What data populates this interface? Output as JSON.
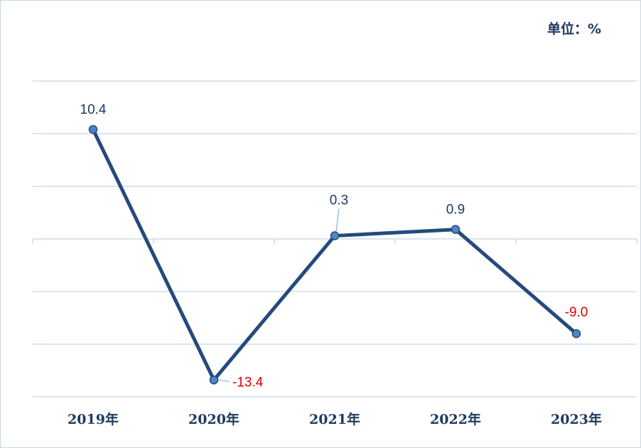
{
  "unit_label": "单位：%",
  "chart_data": {
    "type": "line",
    "categories": [
      "2019年",
      "2020年",
      "2021年",
      "2022年",
      "2023年"
    ],
    "series": [
      {
        "values": [
          10.4,
          -13.4,
          0.3,
          0.9,
          -9.0
        ]
      }
    ],
    "data_labels": [
      "10.4",
      "-13.4",
      "0.3",
      "0.9",
      "-9.0"
    ],
    "ylim": [
      -15,
      15
    ],
    "grid": true,
    "legend": "none",
    "colors": {
      "line": "#254a7c",
      "marker": "#4f86c6",
      "positive_label": "#1f3a60",
      "negative_label": "#e00000",
      "grid": "#c6d5e6"
    }
  }
}
